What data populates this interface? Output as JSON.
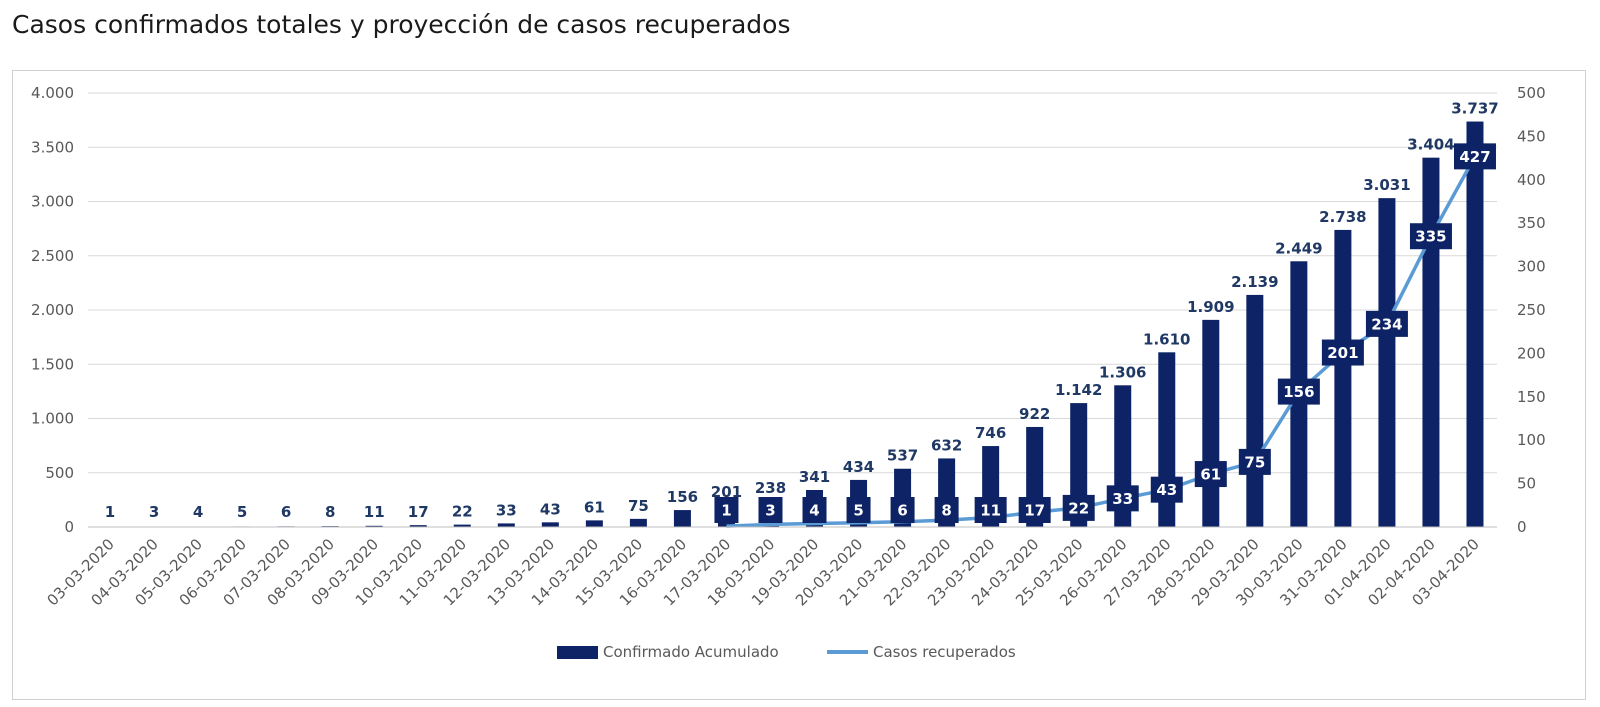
{
  "page": {
    "title": "Casos confirmados totales y proyección de casos recuperados"
  },
  "colors": {
    "bar": "#0d2366",
    "line": "#5b9bd5",
    "grid": "#d9d9d9",
    "label_box": "#0d2366"
  },
  "chart_data": {
    "type": "bar",
    "title": "Casos confirmados totales y proyección de casos recuperados",
    "categories": [
      "03-03-2020",
      "04-03-2020",
      "05-03-2020",
      "06-03-2020",
      "07-03-2020",
      "08-03-2020",
      "09-03-2020",
      "10-03-2020",
      "11-03-2020",
      "12-03-2020",
      "13-03-2020",
      "14-03-2020",
      "15-03-2020",
      "16-03-2020",
      "17-03-2020",
      "18-03-2020",
      "19-03-2020",
      "20-03-2020",
      "21-03-2020",
      "22-03-2020",
      "23-03-2020",
      "24-03-2020",
      "25-03-2020",
      "26-03-2020",
      "27-03-2020",
      "28-03-2020",
      "29-03-2020",
      "30-03-2020",
      "31-03-2020",
      "01-04-2020",
      "02-04-2020",
      "03-04-2020"
    ],
    "series": [
      {
        "name": "Confirmado Acumulado",
        "type": "bar",
        "axis": "left",
        "values": [
          1,
          3,
          4,
          5,
          6,
          8,
          11,
          17,
          22,
          33,
          43,
          61,
          75,
          156,
          201,
          238,
          341,
          434,
          537,
          632,
          746,
          922,
          1142,
          1306,
          1610,
          1909,
          2139,
          2449,
          2738,
          3031,
          3404,
          3737
        ],
        "labels": [
          "1",
          "3",
          "4",
          "5",
          "6",
          "8",
          "11",
          "17",
          "22",
          "33",
          "43",
          "61",
          "75",
          "156",
          "201",
          "238",
          "341",
          "434",
          "537",
          "632",
          "746",
          "922",
          "1.142",
          "1.306",
          "1.610",
          "1.909",
          "2.139",
          "2.449",
          "2.738",
          "3.031",
          "3.404",
          "3.737"
        ]
      },
      {
        "name": "Casos recuperados",
        "type": "line",
        "axis": "right",
        "values": [
          null,
          null,
          null,
          null,
          null,
          null,
          null,
          null,
          null,
          null,
          null,
          null,
          null,
          null,
          1,
          3,
          4,
          5,
          6,
          8,
          11,
          17,
          22,
          33,
          43,
          61,
          75,
          156,
          201,
          234,
          335,
          427
        ],
        "labels": [
          "",
          "",
          "",
          "",
          "",
          "",
          "",
          "",
          "",
          "",
          "",
          "",
          "",
          "",
          "1",
          "3",
          "4",
          "5",
          "6",
          "8",
          "11",
          "17",
          "22",
          "33",
          "43",
          "61",
          "75",
          "156",
          "201",
          "234",
          "335",
          "427"
        ]
      }
    ],
    "y_left": {
      "lim": [
        0,
        4000
      ],
      "ticks": [
        0,
        500,
        1000,
        1500,
        2000,
        2500,
        3000,
        3500,
        4000
      ],
      "tick_labels": [
        "0",
        "500",
        "1.000",
        "1.500",
        "2.000",
        "2.500",
        "3.000",
        "3.500",
        "4.000"
      ]
    },
    "y_right": {
      "lim": [
        0,
        500
      ],
      "ticks": [
        0,
        50,
        100,
        150,
        200,
        250,
        300,
        350,
        400,
        450,
        500
      ],
      "tick_labels": [
        "0",
        "50",
        "100",
        "150",
        "200",
        "250",
        "300",
        "350",
        "400",
        "450",
        "500"
      ]
    },
    "grid": true,
    "legend": {
      "position": "bottom-center",
      "items": [
        {
          "name": "Confirmado Acumulado",
          "marker": "bar"
        },
        {
          "name": "Casos recuperados",
          "marker": "line"
        }
      ]
    }
  }
}
